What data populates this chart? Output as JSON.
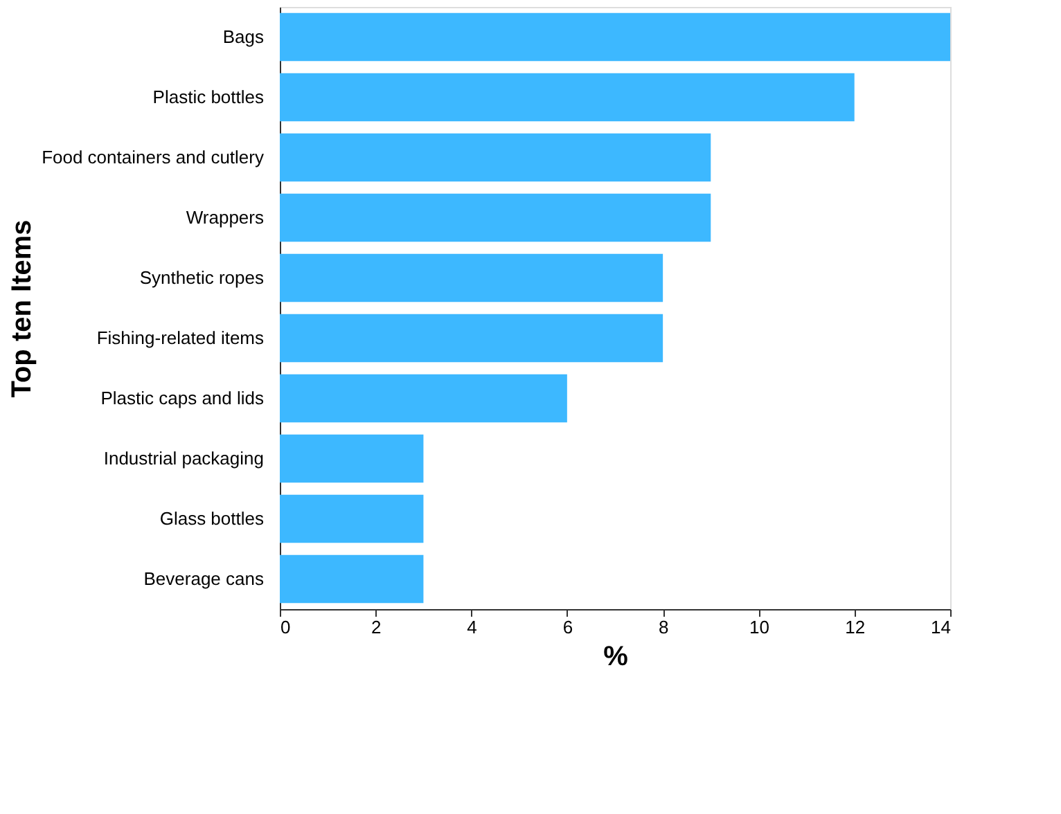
{
  "chart_data": {
    "type": "bar",
    "orientation": "horizontal",
    "xlabel": "%",
    "ylabel": "Top ten Items",
    "categories": [
      "Bags",
      "Plastic bottles",
      "Food containers and cutlery",
      "Wrappers",
      "Synthetic ropes",
      "Fishing-related items",
      "Plastic caps and lids",
      "Industrial packaging",
      "Glass bottles",
      "Beverage cans"
    ],
    "values": [
      14,
      12,
      9,
      9,
      8,
      8,
      6,
      3,
      3,
      3
    ],
    "color": "#3db8ff",
    "xlim": [
      0,
      14
    ],
    "xticks": [
      0,
      2,
      4,
      6,
      8,
      10,
      12,
      14
    ],
    "grid": false
  }
}
